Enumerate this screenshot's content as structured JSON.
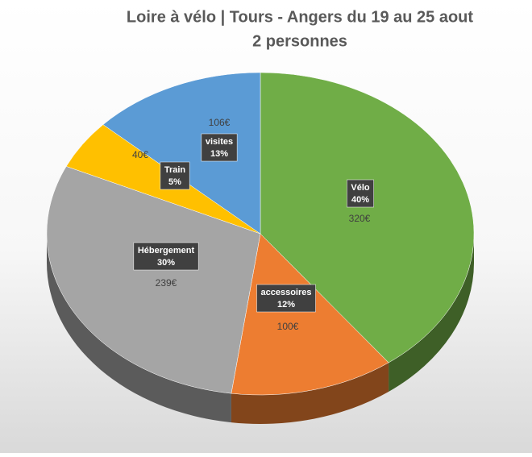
{
  "chart_data": {
    "type": "pie3d",
    "title": "Loire à vélo | Tours - Angers du 19 au 25 aout",
    "subtitle": "2 personnes",
    "categories": [
      "Vélo",
      "accessoires",
      "Hébergement",
      "Train",
      "visites"
    ],
    "values": [
      320,
      100,
      239,
      40,
      106
    ],
    "value_labels": [
      "320€",
      "100€",
      "239€",
      "40€",
      "106€"
    ],
    "shares": [
      40,
      12,
      30,
      5,
      13
    ],
    "share_labels": [
      "40%",
      "12%",
      "30%",
      "5%",
      "13%"
    ],
    "colors": [
      "#70ad47",
      "#ed7d31",
      "#a5a5a5",
      "#ffc000",
      "#5b9bd5"
    ]
  }
}
